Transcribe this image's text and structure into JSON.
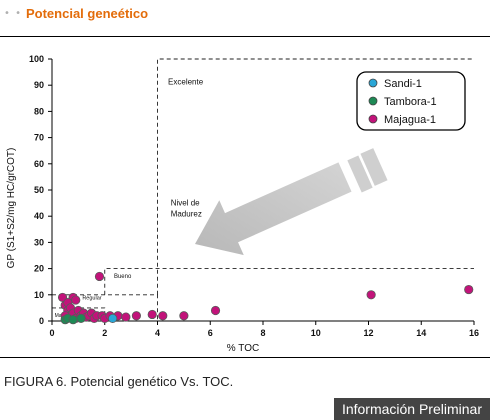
{
  "header": {
    "dots": "• •",
    "title": "Potencial geneético"
  },
  "chart_data": {
    "type": "scatter",
    "title": "",
    "xlabel": "% TOC",
    "ylabel": "GP (S1+S2/mg HC/grCOT)",
    "xlim": [
      0,
      16
    ],
    "ylim": [
      0,
      100
    ],
    "xticks": [
      "0",
      "2",
      "4",
      "6",
      "8",
      "10",
      "12",
      "14",
      "16"
    ],
    "yticks": [
      "0",
      "10",
      "20",
      "30",
      "40",
      "50",
      "60",
      "70",
      "80",
      "90",
      "100"
    ],
    "grid": false,
    "legend_position": "top-right",
    "zones": [
      {
        "label": "Malo"
      },
      {
        "label": "Regular"
      },
      {
        "label": "Bueno"
      },
      {
        "label": "Excelente"
      }
    ],
    "annotation": "Nivel de\nMadurez",
    "series": [
      {
        "name": "Sandi-1",
        "color": "#2aa6d6",
        "points": [
          [
            2.3,
            1
          ]
        ]
      },
      {
        "name": "Tambora-1",
        "color": "#1e8a55",
        "points": [
          [
            0.5,
            0.5
          ],
          [
            0.6,
            1
          ],
          [
            0.8,
            0.5
          ],
          [
            1.1,
            1
          ]
        ]
      },
      {
        "name": "Majagua-1",
        "color": "#c2137a",
        "points": [
          [
            0.4,
            9
          ],
          [
            0.5,
            6
          ],
          [
            0.6,
            4
          ],
          [
            0.7,
            2
          ],
          [
            0.8,
            9
          ],
          [
            0.9,
            8
          ],
          [
            0.5,
            2
          ],
          [
            0.6,
            7
          ],
          [
            0.7,
            5
          ],
          [
            0.8,
            3
          ],
          [
            0.9,
            1
          ],
          [
            1.0,
            4
          ],
          [
            1.1,
            2
          ],
          [
            1.2,
            3
          ],
          [
            1.3,
            1.5
          ],
          [
            1.4,
            2
          ],
          [
            1.5,
            3
          ],
          [
            1.6,
            1
          ],
          [
            1.7,
            2
          ],
          [
            1.8,
            17
          ],
          [
            1.9,
            2
          ],
          [
            2.0,
            1
          ],
          [
            2.2,
            2
          ],
          [
            2.5,
            2
          ],
          [
            2.8,
            1.5
          ],
          [
            3.2,
            2
          ],
          [
            3.8,
            2.5
          ],
          [
            4.2,
            2
          ],
          [
            5.0,
            2
          ],
          [
            6.2,
            4
          ],
          [
            12.1,
            10
          ],
          [
            15.8,
            12
          ]
        ]
      }
    ]
  },
  "caption": "FIGURA 6. Potencial genético Vs. TOC.",
  "badge": "Información Preliminar"
}
